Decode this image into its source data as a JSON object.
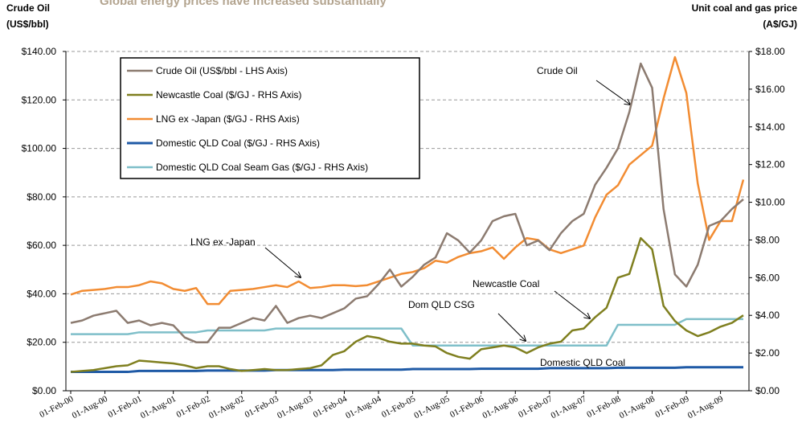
{
  "chart_data": {
    "type": "line",
    "title": "Global energy prices have increased substantially",
    "y_label": [
      "Crude Oil",
      "(US$/bbl)"
    ],
    "y2_label": [
      "Unit coal and gas price",
      "(A$/GJ)"
    ],
    "categories": [
      "01-Feb-00",
      null,
      null,
      "01-Aug-00",
      null,
      null,
      "01-Feb-01",
      null,
      null,
      "01-Aug-01",
      null,
      null,
      "01-Feb-02",
      null,
      null,
      "01-Aug-02",
      null,
      null,
      "01-Feb-03",
      null,
      null,
      "01-Aug-03",
      null,
      null,
      "01-Feb-04",
      null,
      null,
      "01-Aug-04",
      null,
      null,
      "01-Feb-05",
      null,
      null,
      "01-Aug-05",
      null,
      null,
      "01-Feb-06",
      null,
      null,
      "01-Aug-06",
      null,
      null,
      "01-Feb-07",
      null,
      null,
      "01-Aug-07",
      null,
      null,
      "01-Feb-08",
      null,
      null,
      "01-Aug-08",
      null,
      null,
      "01-Feb-09",
      null,
      null,
      "01-Aug-09",
      null,
      null
    ],
    "ylim": [
      0,
      140
    ],
    "yticks": [
      {
        "value": 0,
        "label": "$0.00"
      },
      {
        "value": 20,
        "label": "$20.00"
      },
      {
        "value": 40,
        "label": "$40.00"
      },
      {
        "value": 60,
        "label": "$60.00"
      },
      {
        "value": 80,
        "label": "$80.00"
      },
      {
        "value": 100,
        "label": "$100.00"
      },
      {
        "value": 120,
        "label": "$120.00"
      },
      {
        "value": 140,
        "label": "$140.00"
      }
    ],
    "y2lim": [
      0,
      18
    ],
    "y2ticks": [
      {
        "value": 0,
        "label": "$0.00"
      },
      {
        "value": 2,
        "label": "$2.00"
      },
      {
        "value": 4,
        "label": "$4.00"
      },
      {
        "value": 6,
        "label": "$6.00"
      },
      {
        "value": 8,
        "label": "$8.00"
      },
      {
        "value": 10,
        "label": "$10.00"
      },
      {
        "value": 12,
        "label": "$12.00"
      },
      {
        "value": 14,
        "label": "$14.00"
      },
      {
        "value": 16,
        "label": "$16.00"
      },
      {
        "value": 18,
        "label": "$18.00"
      }
    ],
    "grid": true,
    "legend": "top-left",
    "series": [
      {
        "name": "Crude Oil (US$/bbl  - LHS Axis)",
        "color": "#8c7b70",
        "axis": "y",
        "values": [
          28,
          29,
          31,
          32,
          33,
          28,
          29,
          27,
          28,
          27,
          22,
          20,
          20,
          26,
          26,
          28,
          30,
          29,
          35,
          28,
          30,
          31,
          30,
          32,
          34,
          38,
          39,
          44,
          50,
          43,
          47,
          52,
          55,
          65,
          62,
          57,
          62,
          70,
          72,
          73,
          60,
          62,
          58,
          65,
          70,
          73,
          85,
          92,
          100,
          115,
          135,
          125,
          75,
          48,
          43,
          52,
          68,
          70,
          75,
          79
        ]
      },
      {
        "name": "Newcastle Coal ($/GJ  - RHS Axis)",
        "color": "#7f7f1f",
        "axis": "y2",
        "values": [
          1.0,
          1.05,
          1.1,
          1.2,
          1.3,
          1.35,
          1.6,
          1.55,
          1.5,
          1.45,
          1.35,
          1.2,
          1.3,
          1.3,
          1.15,
          1.05,
          1.1,
          1.15,
          1.1,
          1.1,
          1.15,
          1.2,
          1.35,
          1.9,
          2.1,
          2.6,
          2.9,
          2.8,
          2.6,
          2.5,
          2.5,
          2.4,
          2.35,
          2.0,
          1.8,
          1.7,
          2.2,
          2.3,
          2.4,
          2.3,
          2.0,
          2.3,
          2.5,
          2.6,
          3.2,
          3.3,
          3.9,
          4.4,
          6.0,
          6.2,
          8.1,
          7.5,
          4.5,
          3.7,
          3.2,
          2.9,
          3.1,
          3.4,
          3.6,
          4.0
        ]
      },
      {
        "name": "LNG ex  -Japan ($/GJ  - RHS Axis)",
        "color": "#f28c32",
        "axis": "y2",
        "values": [
          5.1,
          5.3,
          5.35,
          5.4,
          5.5,
          5.5,
          5.6,
          5.8,
          5.7,
          5.4,
          5.3,
          5.45,
          4.6,
          4.6,
          5.3,
          5.35,
          5.4,
          5.5,
          5.6,
          5.5,
          5.8,
          5.45,
          5.5,
          5.6,
          5.6,
          5.55,
          5.6,
          5.8,
          6.0,
          6.2,
          6.3,
          6.5,
          6.9,
          6.8,
          7.1,
          7.3,
          7.4,
          7.6,
          7.0,
          7.6,
          8.1,
          8.0,
          7.5,
          7.3,
          7.5,
          7.7,
          9.2,
          10.4,
          10.9,
          12.0,
          12.5,
          13.0,
          15.5,
          17.7,
          15.8,
          11.0,
          8.0,
          9.0,
          9.0,
          11.2
        ]
      },
      {
        "name": "Domestic QLD Coal ($/GJ  - RHS Axis)",
        "color": "#1f5aa6",
        "axis": "y2",
        "values": [
          1.0,
          1.0,
          1.0,
          1.0,
          1.0,
          1.0,
          1.05,
          1.05,
          1.05,
          1.05,
          1.05,
          1.05,
          1.07,
          1.07,
          1.07,
          1.07,
          1.07,
          1.07,
          1.1,
          1.1,
          1.1,
          1.1,
          1.1,
          1.1,
          1.12,
          1.12,
          1.12,
          1.12,
          1.12,
          1.12,
          1.15,
          1.15,
          1.15,
          1.15,
          1.15,
          1.15,
          1.17,
          1.17,
          1.17,
          1.17,
          1.17,
          1.17,
          1.2,
          1.2,
          1.2,
          1.2,
          1.2,
          1.2,
          1.22,
          1.22,
          1.22,
          1.22,
          1.22,
          1.22,
          1.25,
          1.25,
          1.25,
          1.25,
          1.25,
          1.25
        ]
      },
      {
        "name": "Domestic QLD Coal Seam Gas ($/GJ  - RHS Axis)",
        "color": "#7fbfc9",
        "axis": "y2",
        "values": [
          3.0,
          3.0,
          3.0,
          3.0,
          3.0,
          3.0,
          3.1,
          3.1,
          3.1,
          3.1,
          3.1,
          3.1,
          3.2,
          3.2,
          3.2,
          3.2,
          3.2,
          3.2,
          3.3,
          3.3,
          3.3,
          3.3,
          3.3,
          3.3,
          3.3,
          3.3,
          3.3,
          3.3,
          3.3,
          3.3,
          2.4,
          2.4,
          2.4,
          2.4,
          2.4,
          2.4,
          2.4,
          2.4,
          2.4,
          2.4,
          2.4,
          2.4,
          2.4,
          2.4,
          2.4,
          2.4,
          2.4,
          2.4,
          3.5,
          3.5,
          3.5,
          3.5,
          3.5,
          3.5,
          3.8,
          3.8,
          3.8,
          3.8,
          3.8,
          3.8
        ]
      }
    ],
    "annotations": [
      "Crude Oil",
      "LNG ex -Japan",
      "Newcastle Coal",
      "Dom QLD CSG",
      "Domestic QLD Coal"
    ]
  }
}
